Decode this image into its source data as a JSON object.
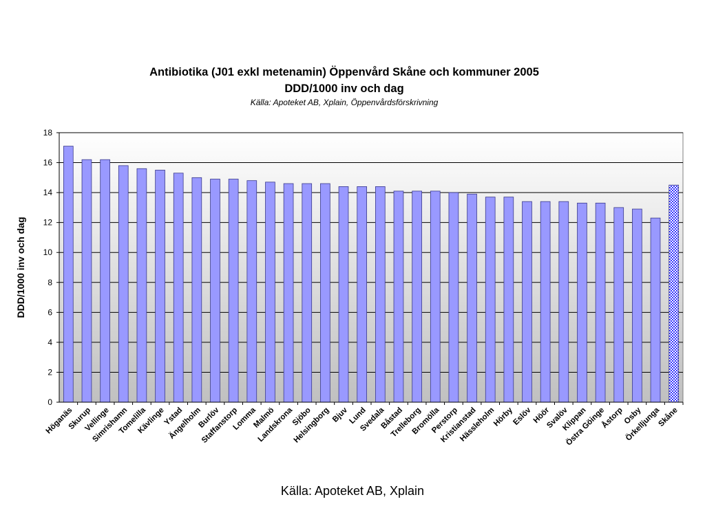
{
  "chart_data": {
    "type": "bar",
    "title": "Antibiotika (J01 exkl metenamin) Öppenvård Skåne och kommuner 2005",
    "subtitle": "DDD/1000 inv och dag",
    "source_note": "Källa: Apoteket AB, Xplain, Öppenvårdsförskrivning",
    "ylabel": "DDD/1000 inv och dag",
    "xlabel": "",
    "ylim": [
      0,
      18
    ],
    "yticks": [
      0,
      2,
      4,
      6,
      8,
      10,
      12,
      14,
      16,
      18
    ],
    "grid": true,
    "legend": "none",
    "categories": [
      "Höganäs",
      "Skurup",
      "Vellinge",
      "Simrishamn",
      "Tomelilla",
      "Kävlinge",
      "Ystad",
      "Ängelholm",
      "Burlöv",
      "Staffanstorp",
      "Lomma",
      "Malmö",
      "Landskrona",
      "Sjöbo",
      "Helsingborg",
      "Bjuv",
      "Lund",
      "Svedala",
      "Båstad",
      "Trelleborg",
      "Bromölla",
      "Perstorp",
      "Kristianstad",
      "Hässleholm",
      "Hörby",
      "Eslöv",
      "Höör",
      "Svalöv",
      "Klippan",
      "Östra Göinge",
      "Åstorp",
      "Osby",
      "Örkelljunga",
      "Skåne"
    ],
    "values": [
      17.1,
      16.2,
      16.2,
      15.8,
      15.6,
      15.5,
      15.3,
      15.0,
      14.9,
      14.9,
      14.8,
      14.7,
      14.6,
      14.6,
      14.6,
      14.4,
      14.4,
      14.4,
      14.1,
      14.1,
      14.1,
      14.0,
      13.9,
      13.7,
      13.7,
      13.4,
      13.4,
      13.4,
      13.3,
      13.3,
      13.0,
      12.9,
      12.3,
      14.5
    ],
    "highlight": "Skåne",
    "colors": {
      "bar": "#9999ff",
      "bar_stroke": "#3a3a8a",
      "highlight_a": "#ffffff",
      "highlight_b": "#3333ff",
      "plot_top": "#ffffff",
      "plot_bottom": "#c0c0c0",
      "grid": "#000000"
    }
  },
  "footer": "Källa: Apoteket AB, Xplain"
}
